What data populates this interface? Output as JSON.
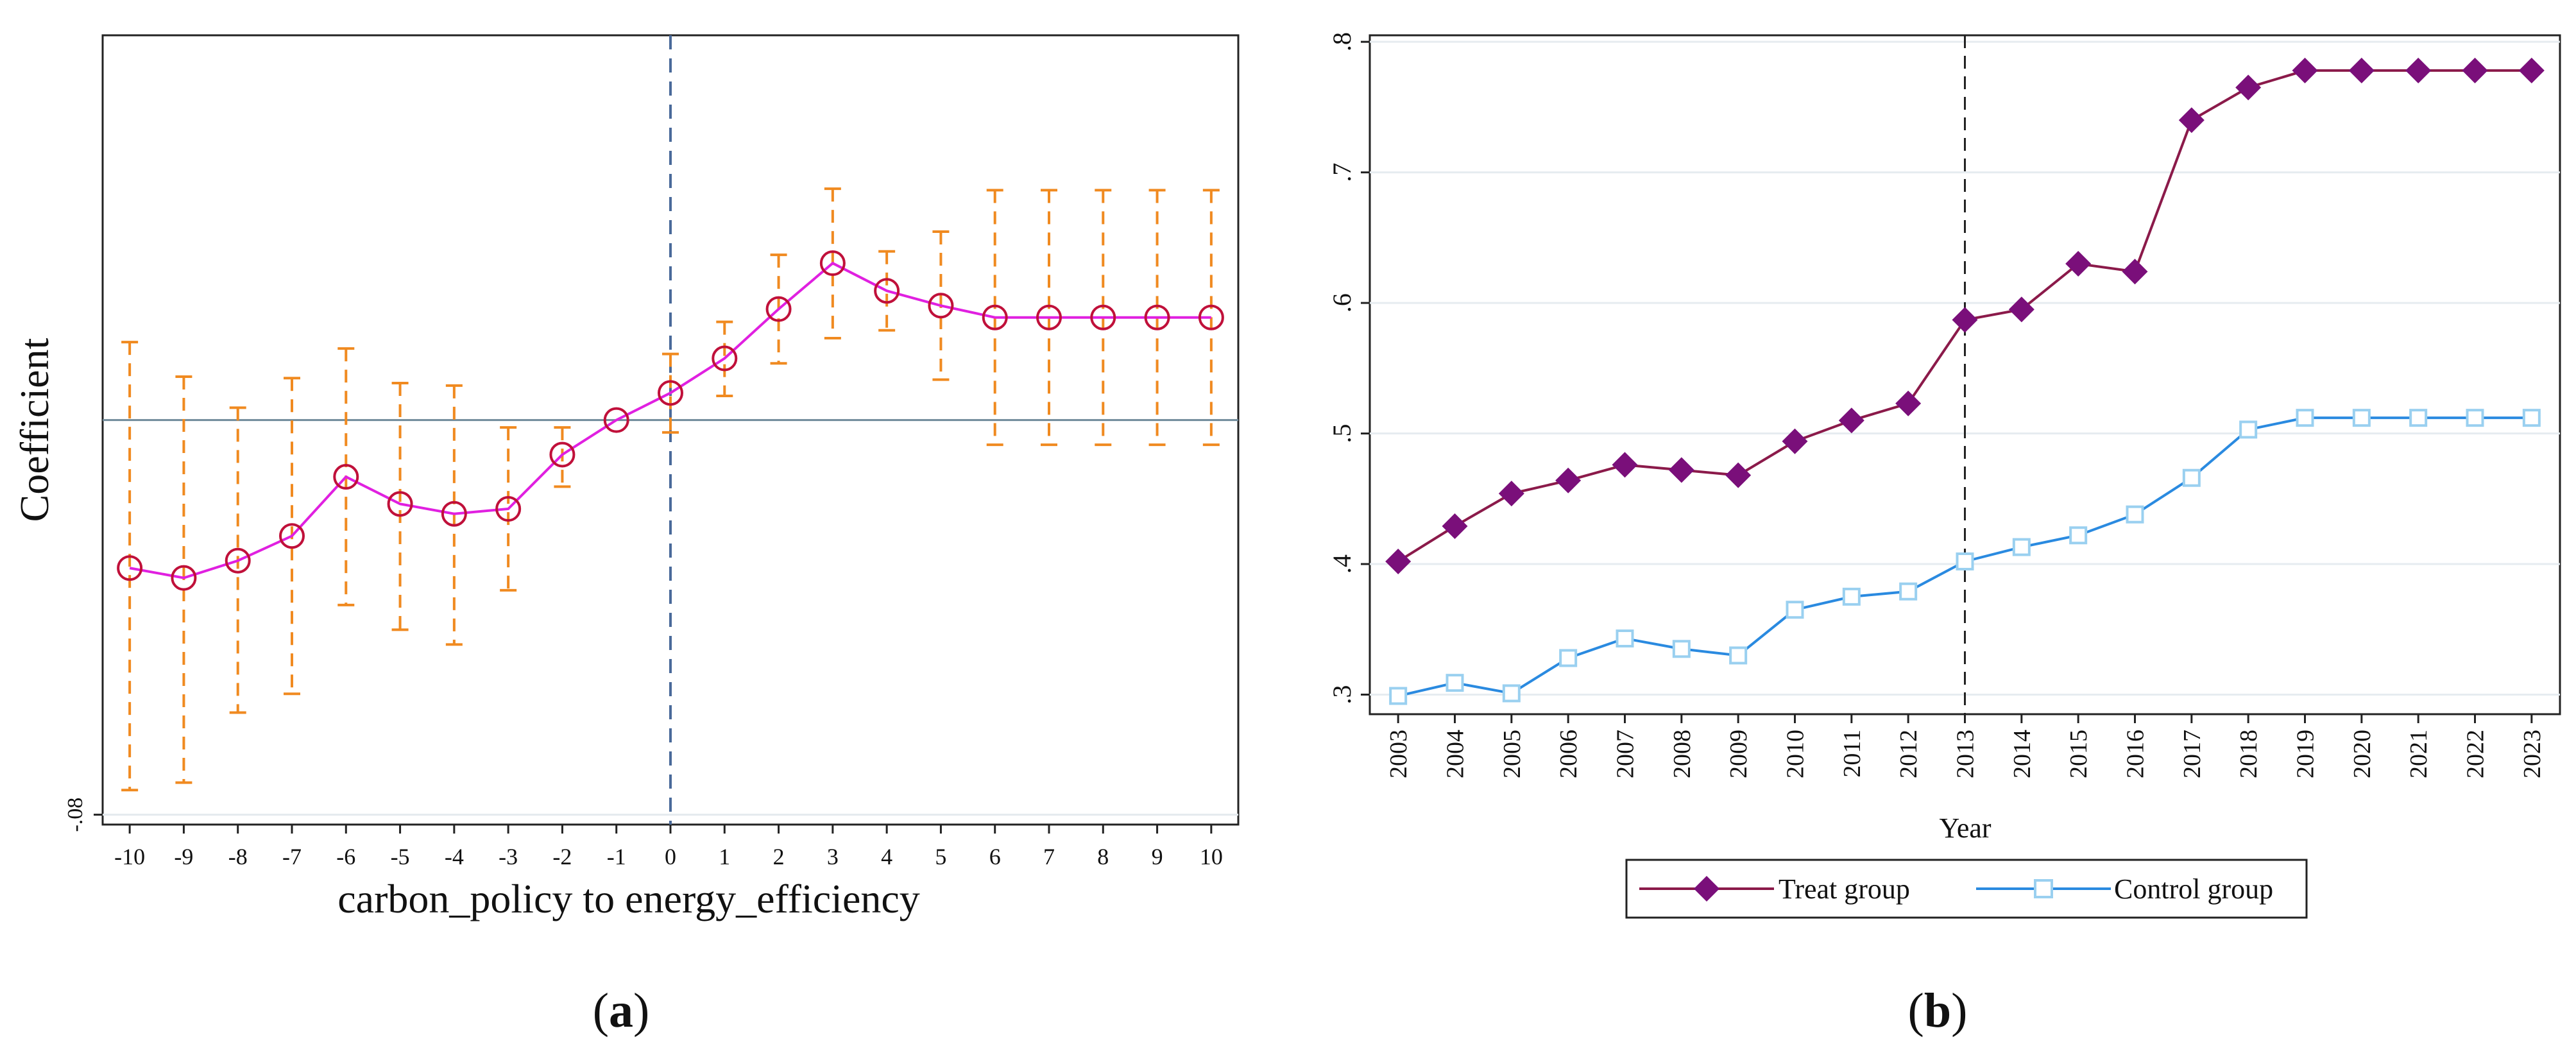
{
  "chart_data": [
    {
      "id": "a",
      "type": "scatter",
      "panel_label": "(a)",
      "panel_letter": "a",
      "xlabel": "carbon_policy to energy_efficiency",
      "ylabel": "Coefficient",
      "x_ticks": [
        "-10",
        "-9",
        "-8",
        "-7",
        "-6",
        "-5",
        "-4",
        "-3",
        "-2",
        "-1",
        "0",
        "1",
        "2",
        "3",
        "4",
        "5",
        "6",
        "7",
        "8",
        "9",
        "10"
      ],
      "y_tick_labels": [
        {
          "value": -0.08,
          "label": "-.08"
        }
      ],
      "ylim": [
        -0.082,
        0.078
      ],
      "reference_line_y": 0,
      "event_line_x": 0,
      "x": [
        -10,
        -9,
        -8,
        -7,
        -6,
        -5,
        -4,
        -3,
        -2,
        -1,
        0,
        1,
        2,
        3,
        4,
        5,
        6,
        7,
        8,
        9,
        10
      ],
      "coefficients": [
        -0.03,
        -0.032,
        -0.0285,
        -0.0235,
        -0.0115,
        -0.017,
        -0.019,
        -0.018,
        -0.007,
        0,
        0.0055,
        0.0125,
        0.0225,
        0.0318,
        0.0262,
        0.0232,
        0.0208,
        0.0208,
        0.0208,
        0.0208,
        0.0208
      ],
      "ci_lower": [
        -0.075,
        -0.0735,
        -0.0593,
        -0.0555,
        -0.0375,
        -0.0425,
        -0.0455,
        -0.0345,
        -0.0135,
        0,
        -0.0025,
        0.0049,
        0.0115,
        0.0166,
        0.0182,
        0.0082,
        -0.005,
        -0.005,
        -0.005,
        -0.005,
        -0.005
      ],
      "ci_upper": [
        0.0158,
        0.0088,
        0.0025,
        0.0085,
        0.0145,
        0.0075,
        0.007,
        -0.0015,
        -0.0015,
        0,
        0.0134,
        0.0199,
        0.0335,
        0.0469,
        0.0342,
        0.0382,
        0.0466,
        0.0466,
        0.0466,
        0.0466,
        0.0466
      ],
      "colors": {
        "line": "#e020e0",
        "marker": "#c0103a",
        "ci": "#f08a20",
        "event_line": "#4a6a9a",
        "zero_line": "#6f8a9a"
      }
    },
    {
      "id": "b",
      "type": "line",
      "panel_label": "(b)",
      "panel_letter": "b",
      "xlabel": "Year",
      "ylabel": "",
      "categories": [
        "2003",
        "2004",
        "2005",
        "2006",
        "2007",
        "2008",
        "2009",
        "2010",
        "2011",
        "2012",
        "2013",
        "2014",
        "2015",
        "2016",
        "2017",
        "2018",
        "2019",
        "2020",
        "2021",
        "2022",
        "2023"
      ],
      "y_ticks": [
        {
          "value": 0.3,
          "label": ".3"
        },
        {
          "value": 0.4,
          "label": ".4"
        },
        {
          "value": 0.5,
          "label": ".5"
        },
        {
          "value": 0.6,
          "label": ".6"
        },
        {
          "value": 0.7,
          "label": ".7"
        },
        {
          "value": 0.8,
          "label": ".8"
        }
      ],
      "ylim": [
        0.285,
        0.805
      ],
      "event_line_x": "2013",
      "grid": true,
      "legend_position": "bottom-center",
      "series": [
        {
          "name": "Treat group",
          "marker": "diamond",
          "color": "#8b1a4a",
          "marker_color": "#7a0f7a",
          "values": [
            0.402,
            0.429,
            0.454,
            0.464,
            0.476,
            0.472,
            0.468,
            0.494,
            0.51,
            0.523,
            0.587,
            0.595,
            0.63,
            0.624,
            0.74,
            0.765,
            0.778,
            0.778,
            0.778,
            0.778,
            0.778
          ]
        },
        {
          "name": "Control group",
          "marker": "square-open",
          "color": "#2a8ae0",
          "marker_color": "#9ad0f0",
          "values": [
            0.299,
            0.309,
            0.301,
            0.328,
            0.343,
            0.335,
            0.33,
            0.365,
            0.375,
            0.379,
            0.402,
            0.413,
            0.422,
            0.438,
            0.466,
            0.503,
            0.512,
            0.512,
            0.512,
            0.512,
            0.512
          ]
        }
      ]
    }
  ]
}
